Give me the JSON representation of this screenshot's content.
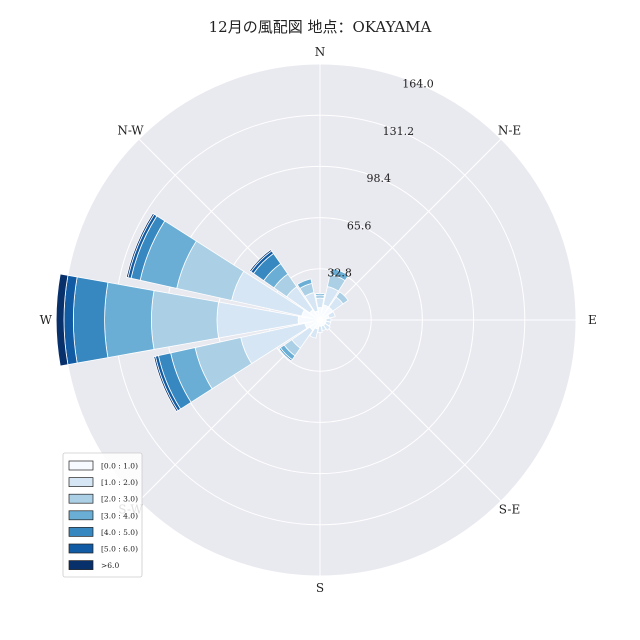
{
  "chart_data": {
    "type": "windrose",
    "title": "12月の風配図 地点：OKAYAMA",
    "directions": [
      "N",
      "NNE",
      "NE",
      "ENE",
      "E",
      "ESE",
      "SE",
      "SSE",
      "S",
      "SSW",
      "SW",
      "WSW",
      "W",
      "WNW",
      "NW",
      "NNW"
    ],
    "compass_labels": [
      {
        "label": "N",
        "angle": 0
      },
      {
        "label": "N-E",
        "angle": 45
      },
      {
        "label": "E",
        "angle": 90
      },
      {
        "label": "S-E",
        "angle": 135
      },
      {
        "label": "S",
        "angle": 180
      },
      {
        "label": "S-W",
        "angle": 225
      },
      {
        "label": "W",
        "angle": 270
      },
      {
        "label": "N-W",
        "angle": 315
      }
    ],
    "radial_ticks": [
      "32.8",
      "65.6",
      "98.4",
      "131.2",
      "164.0"
    ],
    "radial_tick_values": [
      32.8,
      65.6,
      98.4,
      131.2,
      164.0
    ],
    "rmax": 164.0,
    "legend_placement": "lower-left",
    "bins": [
      "[0.0 : 1.0)",
      "[1.0 : 2.0)",
      "[2.0 : 3.0)",
      "[3.0 : 4.0)",
      "[4.0 : 5.0)",
      "[5.0 : 6.0)",
      ">6.0"
    ],
    "colors": [
      "#f7fbff",
      "#d6e6f4",
      "#abd0e6",
      "#6aaed6",
      "#3787c0",
      "#105ba4",
      "#08306b"
    ],
    "series": [
      {
        "direction": "N",
        "values": [
          8,
          6,
          2,
          1,
          0,
          0,
          0
        ]
      },
      {
        "direction": "NNE",
        "values": [
          10,
          12,
          8,
          4,
          0,
          0,
          0
        ]
      },
      {
        "direction": "NE",
        "values": [
          10,
          8,
          4,
          0,
          0,
          0,
          0
        ]
      },
      {
        "direction": "ENE",
        "values": [
          6,
          4,
          0,
          0,
          0,
          0,
          0
        ]
      },
      {
        "direction": "E",
        "values": [
          4,
          3,
          0,
          0,
          0,
          0,
          0
        ]
      },
      {
        "direction": "ESE",
        "values": [
          4,
          3,
          0,
          0,
          0,
          0,
          0
        ]
      },
      {
        "direction": "SE",
        "values": [
          4,
          4,
          0,
          0,
          0,
          0,
          0
        ]
      },
      {
        "direction": "SSE",
        "values": [
          4,
          3,
          0,
          0,
          0,
          0,
          0
        ]
      },
      {
        "direction": "S",
        "values": [
          4,
          4,
          0,
          0,
          0,
          0,
          0
        ]
      },
      {
        "direction": "SSW",
        "values": [
          6,
          6,
          0,
          0,
          0,
          0,
          0
        ]
      },
      {
        "direction": "SW",
        "values": [
          8,
          14,
          6,
          3,
          1,
          0,
          0
        ]
      },
      {
        "direction": "WSW",
        "values": [
          10,
          42,
          30,
          16,
          8,
          2,
          1
        ]
      },
      {
        "direction": "W",
        "values": [
          14,
          52,
          42,
          30,
          20,
          6,
          5
        ]
      },
      {
        "direction": "WNW",
        "values": [
          12,
          46,
          36,
          24,
          6,
          2,
          1
        ]
      },
      {
        "direction": "NW",
        "values": [
          8,
          18,
          10,
          8,
          8,
          2,
          1
        ]
      },
      {
        "direction": "NNW",
        "values": [
          6,
          12,
          6,
          3,
          0,
          0,
          0
        ]
      }
    ]
  }
}
